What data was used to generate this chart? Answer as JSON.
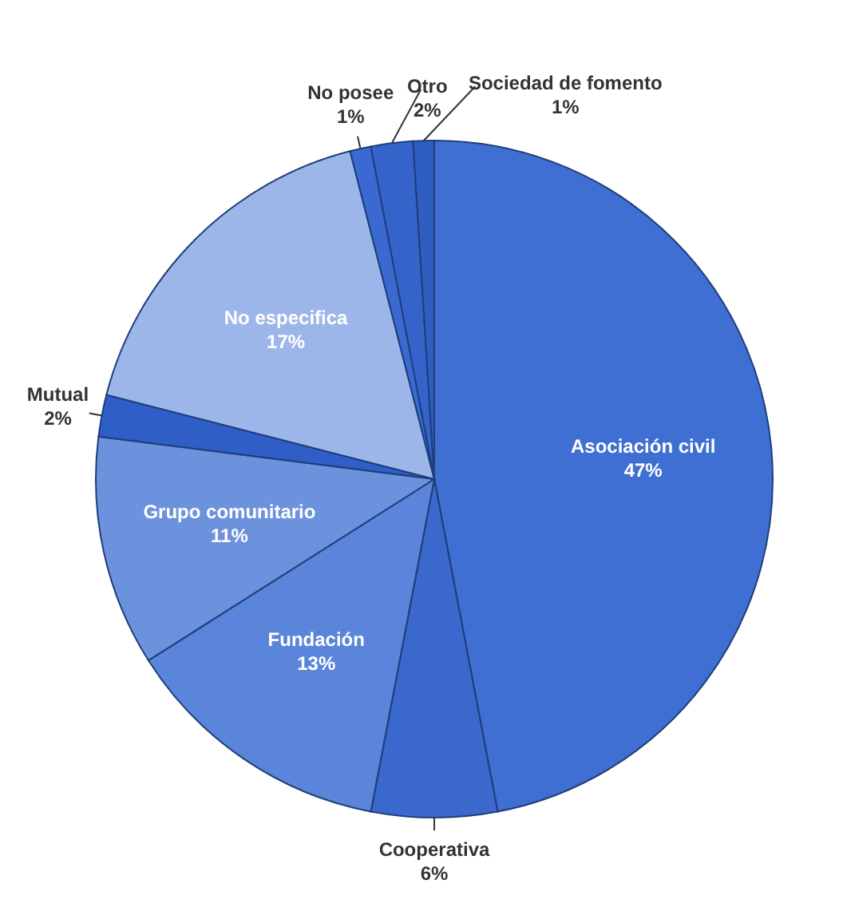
{
  "chart_data": {
    "type": "pie",
    "categories": [
      "Asociación civil",
      "Cooperativa",
      "Fundación",
      "Grupo comunitario",
      "Mutual",
      "No especifica",
      "No posee",
      "Otro",
      "Sociedad de fomento"
    ],
    "values": [
      47,
      6,
      13,
      11,
      2,
      17,
      1,
      2,
      1
    ],
    "value_labels": [
      "47%",
      "6%",
      "13%",
      "11%",
      "2%",
      "17%",
      "1%",
      "2%",
      "1%"
    ],
    "colors": [
      "#3f6fd2",
      "#3a68cc",
      "#5a85da",
      "#6c92de",
      "#2e5ec6",
      "#9db6ea",
      "#3a6ad0",
      "#3464ca",
      "#2f5ec2"
    ]
  }
}
